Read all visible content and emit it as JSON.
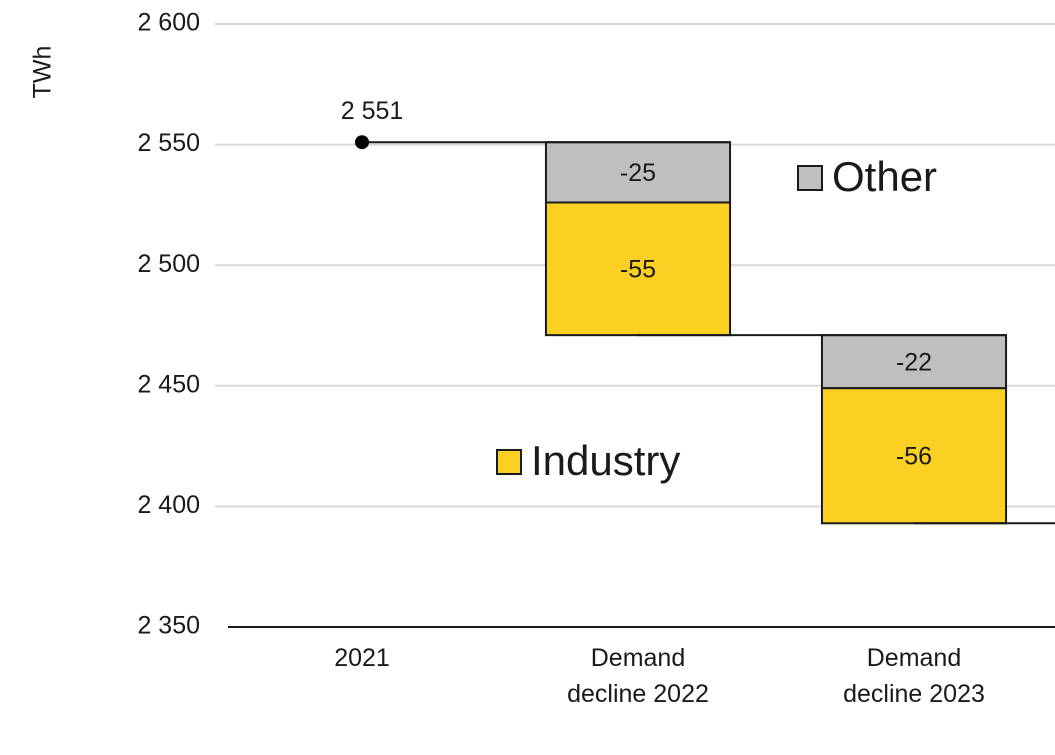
{
  "chart_data": {
    "type": "waterfall",
    "y_label": "TWh",
    "categories": [
      "2021",
      "Demand decline 2022",
      "Demand decline 2023"
    ],
    "start": {
      "values": [
        2551
      ],
      "value_labels": [
        "2 551"
      ]
    },
    "series": [
      {
        "name": "Industry",
        "color": "#fcd023",
        "values": [
          null,
          -55,
          -56
        ]
      },
      {
        "name": "Other",
        "color": "#bfbfbf",
        "values": [
          null,
          -25,
          -22
        ]
      }
    ],
    "ylim": [
      2350,
      2600
    ],
    "yticks": [
      {
        "value": 2350,
        "label": "2 350"
      },
      {
        "value": 2400,
        "label": "2 400"
      },
      {
        "value": 2450,
        "label": "2 450"
      },
      {
        "value": 2500,
        "label": "2 500"
      },
      {
        "value": 2550,
        "label": "2 550"
      },
      {
        "value": 2600,
        "label": "2 600"
      }
    ],
    "grid": true
  }
}
